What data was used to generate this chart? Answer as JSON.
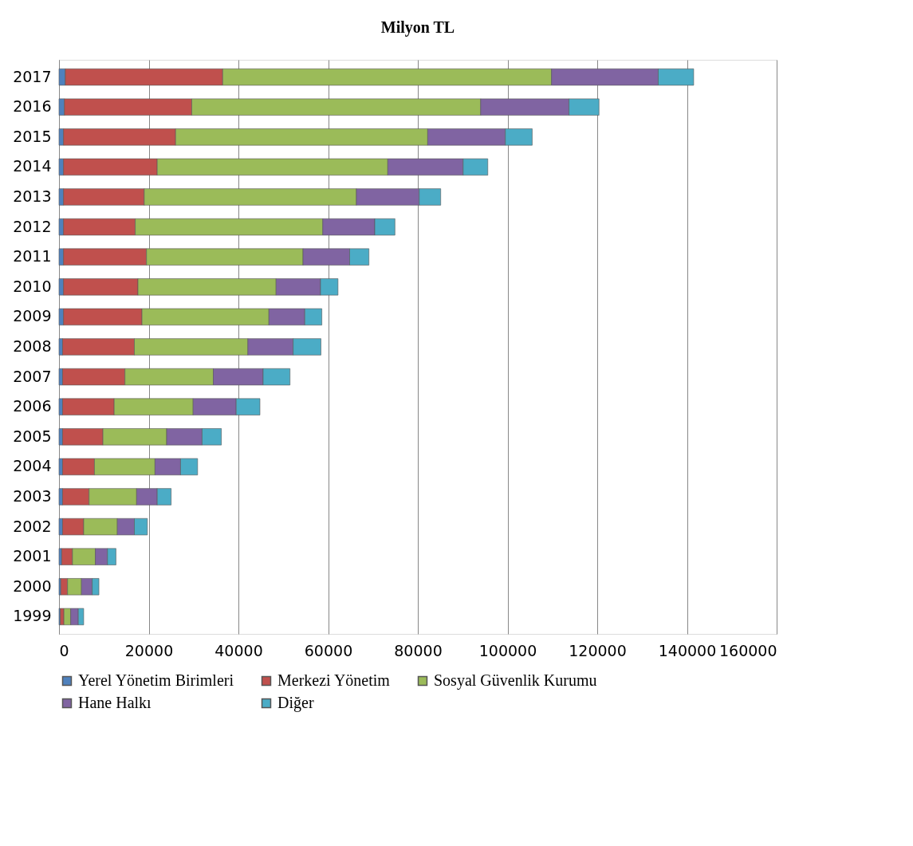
{
  "chart_data": {
    "type": "bar",
    "orientation": "horizontal",
    "stacked": true,
    "title": "Milyon TL",
    "categories": [
      "2017",
      "2016",
      "2015",
      "2014",
      "2013",
      "2012",
      "2011",
      "2010",
      "2009",
      "2008",
      "2007",
      "2006",
      "2005",
      "2004",
      "2003",
      "2002",
      "2001",
      "2000",
      "1999"
    ],
    "series": [
      {
        "name": "Yerel Yönetim Birimleri",
        "color": "#4f81bd",
        "values": [
          1400,
          1200,
          1000,
          1000,
          1000,
          1000,
          1000,
          1000,
          1000,
          800,
          800,
          800,
          800,
          800,
          800,
          800,
          600,
          400,
          300
        ]
      },
      {
        "name": "Merkezi Yönetim",
        "color": "#c0504d",
        "values": [
          35100,
          28400,
          25000,
          20900,
          18000,
          16000,
          18500,
          16600,
          17500,
          16000,
          13900,
          11500,
          9000,
          7100,
          5900,
          4700,
          2400,
          1500,
          800
        ]
      },
      {
        "name": "Sosyal Güvenlik Kurumu",
        "color": "#9bbb59",
        "values": [
          73300,
          64400,
          56200,
          51400,
          47300,
          41800,
          34900,
          30800,
          28300,
          25300,
          19700,
          17600,
          14200,
          13500,
          10600,
          7500,
          5100,
          3100,
          1500
        ]
      },
      {
        "name": "Hane Halkı",
        "color": "#8064a2",
        "values": [
          23800,
          19700,
          17300,
          16800,
          14000,
          11600,
          10400,
          9900,
          8000,
          10100,
          11100,
          9600,
          7900,
          5700,
          4600,
          3800,
          2700,
          2400,
          1700
        ]
      },
      {
        "name": "Diğer",
        "color": "#4bacc6",
        "values": [
          7900,
          6700,
          6000,
          5500,
          4800,
          4500,
          4300,
          3900,
          3800,
          6200,
          6000,
          5300,
          4300,
          3800,
          3100,
          2900,
          1900,
          1500,
          1200
        ]
      }
    ],
    "xlim": [
      0,
      160000
    ],
    "xticks": [
      0,
      20000,
      40000,
      60000,
      80000,
      100000,
      120000,
      140000,
      160000
    ],
    "grid": "x",
    "legend": "bottom"
  }
}
